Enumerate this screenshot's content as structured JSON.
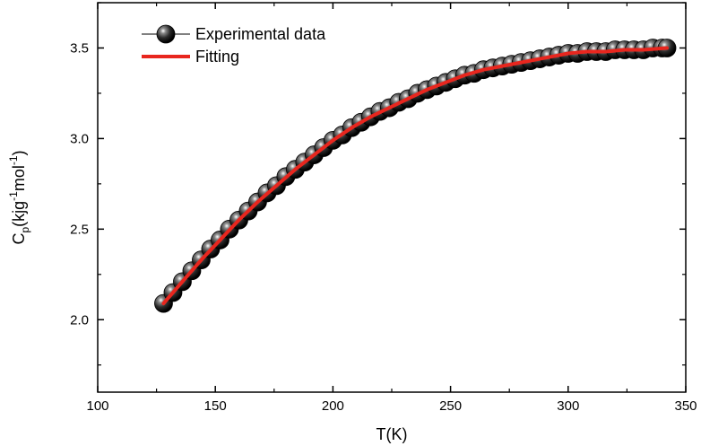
{
  "chart_data": {
    "type": "scatter",
    "xlabel": "T(K)",
    "ylabel": {
      "base": "C",
      "sub": "p",
      "unit_a": "(kjg",
      "sup_a": "-1",
      "unit_b": "mol",
      "sup_b": "-1",
      "close": ")"
    },
    "xlim": [
      100,
      350
    ],
    "ylim": [
      1.6,
      3.75
    ],
    "xticks": [
      100,
      150,
      200,
      250,
      300,
      350
    ],
    "xtick_labels": [
      "100",
      "150",
      "200",
      "250",
      "300",
      "350"
    ],
    "yticks": [
      2.0,
      2.5,
      3.0,
      3.5
    ],
    "ytick_labels": [
      "2.0",
      "2.5",
      "3.0",
      "3.5"
    ],
    "grid": false,
    "legend_position": "top-left",
    "series": [
      {
        "name": "Experimental data",
        "style": "markers",
        "color": "#1a1a1a",
        "x": [
          128,
          132,
          136,
          140,
          144,
          148,
          152,
          156,
          160,
          164,
          168,
          172,
          176,
          180,
          184,
          188,
          192,
          196,
          200,
          204,
          208,
          212,
          216,
          220,
          224,
          228,
          232,
          236,
          240,
          244,
          248,
          252,
          256,
          260,
          264,
          268,
          272,
          276,
          280,
          284,
          288,
          292,
          296,
          300,
          304,
          308,
          312,
          316,
          320,
          324,
          328,
          332,
          336,
          340,
          342
        ],
        "y": [
          2.09,
          2.15,
          2.21,
          2.27,
          2.33,
          2.39,
          2.44,
          2.5,
          2.55,
          2.6,
          2.65,
          2.7,
          2.74,
          2.79,
          2.83,
          2.87,
          2.91,
          2.95,
          2.99,
          3.02,
          3.06,
          3.09,
          3.12,
          3.15,
          3.17,
          3.2,
          3.22,
          3.25,
          3.27,
          3.29,
          3.31,
          3.33,
          3.35,
          3.36,
          3.38,
          3.39,
          3.4,
          3.41,
          3.42,
          3.43,
          3.44,
          3.45,
          3.46,
          3.47,
          3.47,
          3.48,
          3.48,
          3.48,
          3.49,
          3.49,
          3.49,
          3.49,
          3.5,
          3.5,
          3.5
        ]
      },
      {
        "name": "Fitting",
        "style": "line",
        "color": "#e8261e",
        "x": [
          128,
          136,
          144,
          152,
          160,
          168,
          176,
          184,
          192,
          200,
          208,
          216,
          224,
          232,
          240,
          248,
          256,
          264,
          272,
          280,
          288,
          296,
          300,
          308,
          316,
          324,
          332,
          342
        ],
        "y": [
          2.09,
          2.21,
          2.33,
          2.44,
          2.55,
          2.65,
          2.74,
          2.83,
          2.91,
          2.99,
          3.06,
          3.12,
          3.17,
          3.22,
          3.27,
          3.31,
          3.35,
          3.38,
          3.4,
          3.42,
          3.44,
          3.46,
          3.47,
          3.48,
          3.48,
          3.49,
          3.49,
          3.5
        ]
      }
    ]
  }
}
